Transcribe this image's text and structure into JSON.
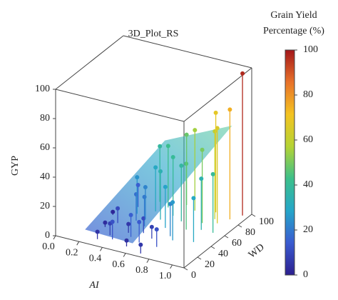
{
  "chart_data": {
    "type": "scatter3d",
    "title": "3D_Plot_RS",
    "x_label": "AI",
    "y_label": "WD",
    "z_label": "GYP",
    "xlim": [
      0,
      1.1
    ],
    "xticks": [
      {
        "value": 0,
        "label": "0.0"
      },
      0.2,
      0.4,
      0.6,
      0.8,
      {
        "value": 1,
        "label": "1.0"
      }
    ],
    "ylim": [
      0,
      100
    ],
    "yticks": [
      0,
      20,
      40,
      60,
      80,
      100
    ],
    "zlim": [
      0,
      100
    ],
    "zticks": [
      0,
      20,
      40,
      60,
      80,
      100
    ],
    "x": [
      0.3,
      0.35,
      0.4,
      0.45,
      0.5,
      0.3,
      0.4,
      0.5,
      0.55,
      0.6,
      0.35,
      0.45,
      0.55,
      0.65,
      0.6,
      0.7,
      0.75,
      0.8,
      0.85,
      0.9,
      0.95,
      1.0,
      0.5,
      0.7,
      0.25,
      0.2,
      0.3,
      0.65,
      0.75,
      0.8,
      1.05,
      0.9,
      0.6,
      0.4,
      0.85,
      0.55,
      0.7,
      0.45,
      1.0,
      0.95
    ],
    "y": [
      10,
      20,
      15,
      30,
      25,
      40,
      50,
      45,
      35,
      20,
      60,
      70,
      60,
      50,
      70,
      65,
      40,
      55,
      70,
      80,
      75,
      85,
      80,
      85,
      30,
      50,
      70,
      30,
      20,
      35,
      95,
      60,
      90,
      85,
      90,
      10,
      5,
      55,
      60,
      40
    ],
    "z": [
      5,
      8,
      12,
      6,
      15,
      10,
      18,
      20,
      10,
      14,
      25,
      30,
      33,
      28,
      40,
      38,
      22,
      45,
      50,
      60,
      65,
      75,
      42,
      55,
      3,
      2,
      15,
      8,
      12,
      26,
      97,
      35,
      48,
      38,
      68,
      4,
      6,
      22,
      40,
      30
    ],
    "colorbar": {
      "title": [
        "Grain Yield",
        "Percentage (%)"
      ],
      "clim": [
        0,
        100
      ],
      "ticks": [
        0,
        20,
        40,
        60,
        80,
        100
      ],
      "colormap": [
        "#2c1f8f",
        "#3a5bd0",
        "#25a6c9",
        "#3cc08a",
        "#b5d334",
        "#f4c321",
        "#e8722a",
        "#a3161a"
      ]
    }
  }
}
